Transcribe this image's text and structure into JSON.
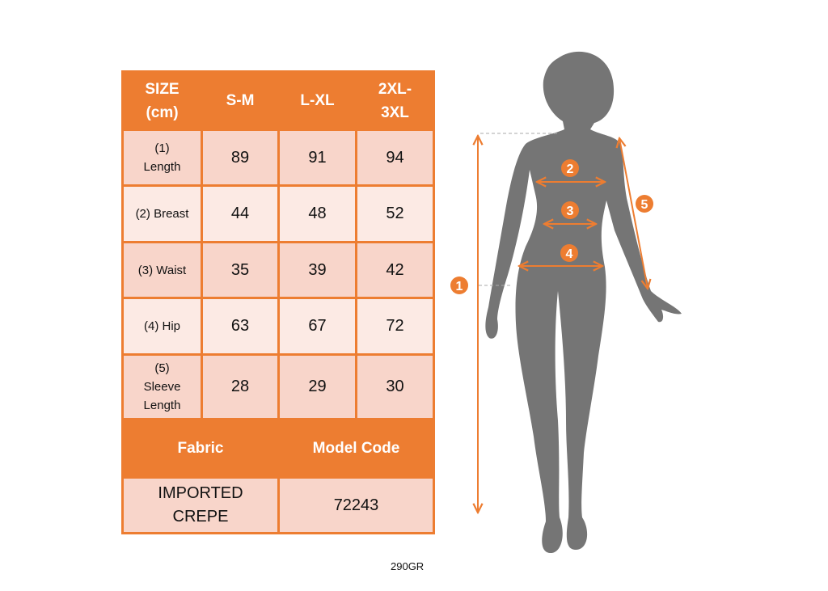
{
  "table": {
    "header": [
      "SIZE (cm)",
      "S-M",
      "L-XL",
      "2XL-3XL"
    ],
    "header_lines": [
      [
        "SIZE",
        "(cm)"
      ],
      [
        "S-M"
      ],
      [
        "L-XL"
      ],
      [
        "2XL-",
        "3XL"
      ]
    ],
    "rows": [
      {
        "label_lines": [
          "(1)",
          "Length"
        ],
        "values": [
          "89",
          "91",
          "94"
        ]
      },
      {
        "label_lines": [
          "(2) Breast"
        ],
        "values": [
          "44",
          "48",
          "52"
        ]
      },
      {
        "label_lines": [
          "(3) Waist"
        ],
        "values": [
          "35",
          "39",
          "42"
        ]
      },
      {
        "label_lines": [
          "(4) Hip"
        ],
        "values": [
          "63",
          "67",
          "72"
        ]
      },
      {
        "label_lines": [
          "(5)",
          "Sleeve",
          "Length"
        ],
        "values": [
          "28",
          "29",
          "30"
        ]
      }
    ],
    "footer_header": [
      "Fabric",
      "Model Code"
    ],
    "fabric_lines": [
      "IMPORTED",
      "CREPE"
    ],
    "model_code": "72243"
  },
  "figure": {
    "markers": [
      "1",
      "2",
      "3",
      "4",
      "5"
    ],
    "silhouette_color": "#757575",
    "accent_color": "#ED7D31"
  },
  "weight": "290GR"
}
